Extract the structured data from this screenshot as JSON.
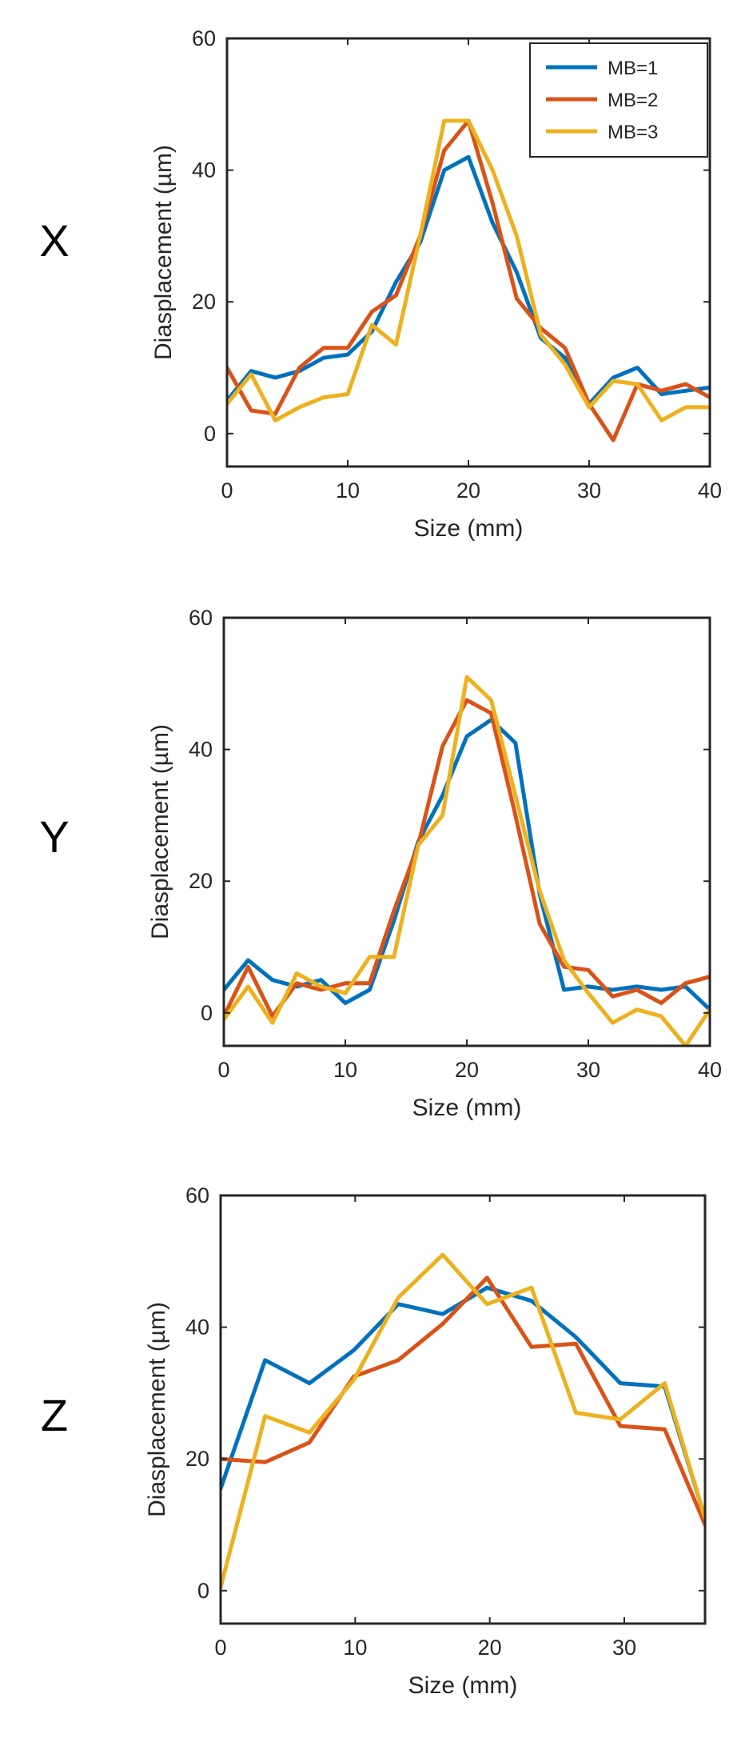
{
  "chart_data": [
    {
      "type": "line",
      "row_label": "X",
      "xlabel": "Size (mm)",
      "ylabel": "Diasplacement (µm)",
      "xlim": [
        0,
        40
      ],
      "ylim": [
        -5,
        60
      ],
      "xticks": [
        0,
        10,
        20,
        30,
        40
      ],
      "yticks": [
        0,
        20,
        40,
        60
      ],
      "x": [
        0,
        2,
        4,
        6,
        8,
        10,
        12,
        14,
        16,
        18,
        20,
        22,
        24,
        26,
        28,
        30,
        32,
        34,
        36,
        38,
        40
      ],
      "legend": "top-right",
      "series": [
        {
          "name": "MB=1",
          "color": "#0072BD",
          "values": [
            5,
            9.5,
            8.5,
            9.5,
            11.5,
            12,
            15.5,
            23,
            29,
            40,
            42,
            32,
            24.5,
            14.5,
            11.5,
            4.5,
            8.5,
            10,
            6,
            6.5,
            7
          ]
        },
        {
          "name": "MB=2",
          "color": "#D95319",
          "values": [
            10,
            3.5,
            3,
            10,
            13,
            13,
            18.5,
            21,
            30,
            43,
            47.5,
            35,
            20.5,
            16,
            13,
            4.5,
            -1,
            7.5,
            6.5,
            7.5,
            5.5
          ]
        },
        {
          "name": "MB=3",
          "color": "#EDB120",
          "values": [
            4.5,
            9,
            2,
            4,
            5.5,
            6,
            16.5,
            13.5,
            30,
            47.5,
            47.5,
            40,
            30,
            15,
            10.5,
            4,
            8,
            7.5,
            2,
            4,
            4
          ]
        }
      ]
    },
    {
      "type": "line",
      "row_label": "Y",
      "xlabel": "Size (mm)",
      "ylabel": "Diasplacement (µm)",
      "xlim": [
        0,
        40
      ],
      "ylim": [
        -5,
        60
      ],
      "xticks": [
        0,
        10,
        20,
        30,
        40
      ],
      "yticks": [
        0,
        20,
        40,
        60
      ],
      "x": [
        0,
        2,
        4,
        6,
        8,
        10,
        12,
        14,
        16,
        18,
        20,
        22,
        24,
        26,
        28,
        30,
        32,
        34,
        36,
        38,
        40
      ],
      "series": [
        {
          "name": "MB=1",
          "color": "#0072BD",
          "values": [
            3.5,
            8,
            5,
            4,
            5,
            1.5,
            3.5,
            14,
            26,
            33,
            42,
            44.5,
            41,
            18,
            3.5,
            4,
            3.5,
            4,
            3.5,
            4,
            0.5
          ]
        },
        {
          "name": "MB=2",
          "color": "#D95319",
          "values": [
            -0.5,
            7,
            -0.5,
            4.5,
            3.5,
            4.5,
            4.5,
            15.5,
            25.5,
            40.5,
            47.5,
            45.5,
            30,
            13.5,
            7,
            6.5,
            2.5,
            3.5,
            1.5,
            4.5,
            5.5
          ]
        },
        {
          "name": "MB=3",
          "color": "#EDB120",
          "values": [
            -1,
            4,
            -1.5,
            6,
            4,
            3,
            8.5,
            8.5,
            25.5,
            30,
            51,
            47.5,
            33,
            18.5,
            8,
            3,
            -1.5,
            0.5,
            -0.5,
            -5,
            0.5
          ]
        }
      ]
    },
    {
      "type": "line",
      "row_label": "Z",
      "xlabel": "Size (mm)",
      "ylabel": "Diasplacement (µm)",
      "xlim": [
        0,
        36
      ],
      "ylim": [
        -5,
        60
      ],
      "xticks": [
        0,
        10,
        20,
        30
      ],
      "yticks": [
        0,
        20,
        40,
        60
      ],
      "x": [
        0,
        3.3,
        6.6,
        9.9,
        13.2,
        16.5,
        19.8,
        23.1,
        26.4,
        29.7,
        33,
        36
      ],
      "series": [
        {
          "name": "MB=1",
          "color": "#0072BD",
          "values": [
            15.5,
            35,
            31.5,
            36.5,
            43.5,
            42,
            46,
            44,
            38.5,
            31.5,
            31,
            11
          ]
        },
        {
          "name": "MB=2",
          "color": "#D95319",
          "values": [
            20,
            19.5,
            22.5,
            32.5,
            35,
            40.5,
            47.5,
            37,
            37.5,
            25,
            24.5,
            10
          ]
        },
        {
          "name": "MB=3",
          "color": "#EDB120",
          "values": [
            0.5,
            26.5,
            24,
            32,
            44.5,
            51,
            43.5,
            46,
            27,
            26,
            31.5,
            11
          ]
        }
      ]
    }
  ]
}
